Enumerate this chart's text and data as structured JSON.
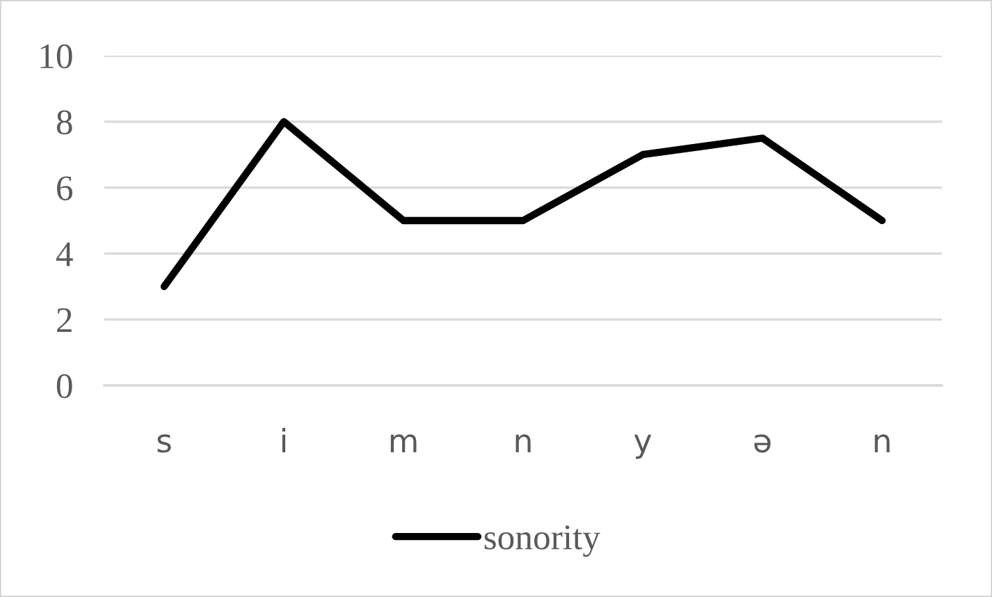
{
  "chart_data": {
    "type": "line",
    "categories": [
      "s",
      "i",
      "m",
      "n",
      "y",
      "ə",
      "n"
    ],
    "series": [
      {
        "name": "sonority",
        "color": "#000000",
        "values": [
          3,
          8,
          5,
          5,
          7,
          7.5,
          5
        ]
      }
    ],
    "ylim": [
      0,
      10
    ],
    "yticks": [
      0,
      2,
      4,
      6,
      8,
      10
    ],
    "grid": "y",
    "legend": "bottom"
  }
}
